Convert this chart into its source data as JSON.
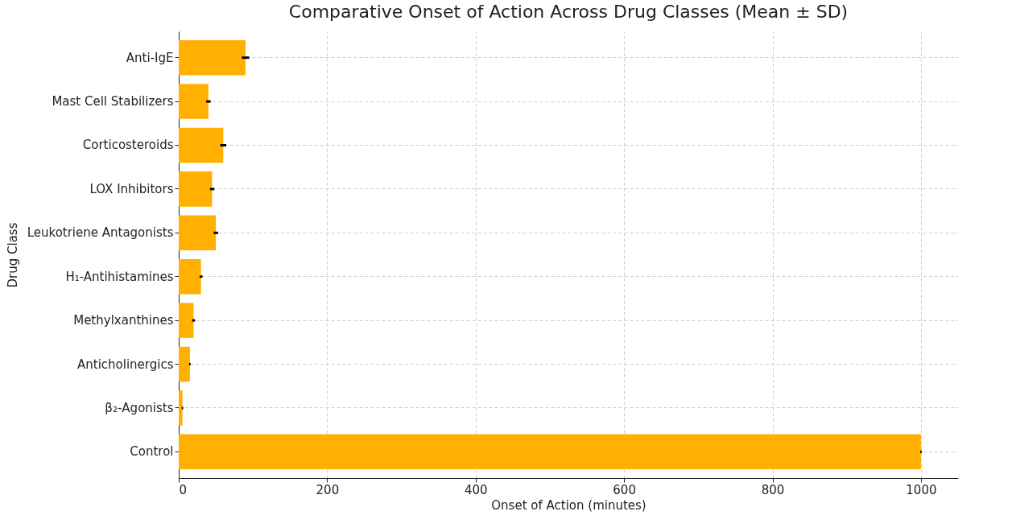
{
  "chart_data": {
    "type": "bar",
    "orientation": "horizontal",
    "title": "Comparative Onset of Action Across Drug Classes (Mean ± SD)",
    "xlabel": "Onset of Action (minutes)",
    "ylabel": "Drug Class",
    "categories": [
      "Anti-IgE",
      "Mast Cell Stabilizers",
      "Corticosteroids",
      "LOX Inhibitors",
      "Leukotriene Antagonists",
      "H₁-Antihistamines",
      "Methylxanthines",
      "Anticholinergics",
      "β₂-Agonists",
      "Control"
    ],
    "values": [
      90,
      40,
      60,
      45,
      50,
      30,
      20,
      15,
      5,
      1000
    ],
    "errors": [
      5,
      3,
      4,
      3,
      3,
      2,
      2,
      1,
      1,
      1
    ],
    "color": "#ffb000",
    "xlim": [
      0,
      1050
    ],
    "xticks": [
      0,
      200,
      400,
      600,
      800,
      1000
    ],
    "grid": true
  }
}
